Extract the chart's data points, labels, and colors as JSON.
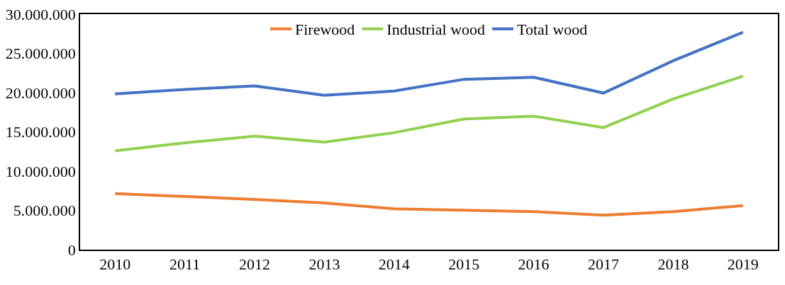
{
  "chart_data": {
    "type": "line",
    "categories": [
      "2010",
      "2011",
      "2012",
      "2013",
      "2014",
      "2015",
      "2016",
      "2017",
      "2018",
      "2019"
    ],
    "series": [
      {
        "name": "Firewood",
        "color": "#ed7d31",
        "values": [
          7140000,
          6770000,
          6400000,
          5950000,
          5200000,
          5030000,
          4850000,
          4400000,
          4850000,
          5600000
        ]
      },
      {
        "name": "Industrial wood",
        "color": "#92d050",
        "values": [
          12600000,
          13600000,
          14450000,
          13700000,
          14900000,
          16650000,
          17000000,
          15550000,
          19200000,
          22100000
        ]
      },
      {
        "name": "Total wood",
        "color": "#4472c4",
        "values": [
          19850000,
          20400000,
          20860000,
          19670000,
          20200000,
          21700000,
          21960000,
          19950000,
          24060000,
          27700000
        ]
      }
    ],
    "ylim": [
      0,
      30000000
    ],
    "yticks": [
      0,
      {
        "value": 5000000,
        "label": "5.000.000"
      },
      {
        "value": 10000000,
        "label": "10.000.000"
      },
      {
        "value": 15000000,
        "label": "15.000.000"
      },
      {
        "value": 20000000,
        "label": "20.000.000"
      },
      {
        "value": 25000000,
        "label": "25.000.000"
      },
      {
        "value": 30000000,
        "label": "30.000.000"
      }
    ],
    "legend": "top",
    "marker": "none",
    "line_style": "solid"
  }
}
